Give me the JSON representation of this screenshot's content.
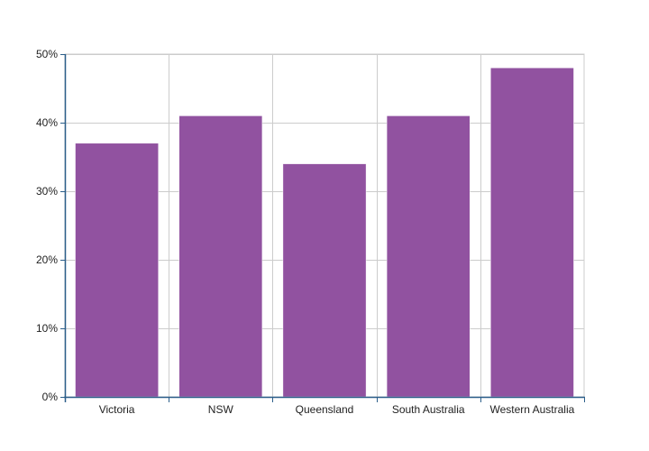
{
  "chart_data": {
    "type": "bar",
    "categories": [
      "Victoria",
      "NSW",
      "Queensland",
      "South Australia",
      "Western Australia"
    ],
    "values": [
      37,
      41,
      34,
      41,
      48
    ],
    "ylim": [
      0,
      50
    ],
    "yticks": [
      0,
      10,
      20,
      30,
      40,
      50
    ],
    "ytick_labels": [
      "0%",
      "10%",
      "20%",
      "30%",
      "40%",
      "50%"
    ],
    "grid": true,
    "bar_color": "#9152a0",
    "axis_color": "#2c5f8a",
    "grid_color": "#cccccc"
  }
}
